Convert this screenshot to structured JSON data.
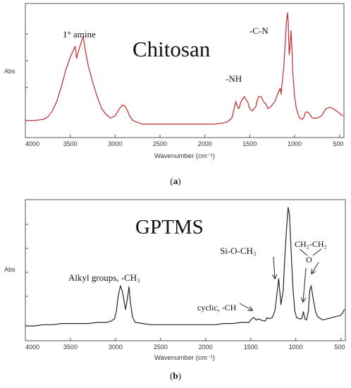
{
  "chart_data": [
    {
      "type": "line",
      "panel_label": "(a)",
      "panel_letter": "a",
      "title": "Chitosan",
      "xlabel": "Wavenumber (cm⁻¹)",
      "ylabel": "Abs",
      "xlim": [
        4000,
        450
      ],
      "x_reversed": true,
      "y_ticks_labeled": false,
      "x_ticks": [
        "4000",
        "3500",
        "3000",
        "2500",
        "2000",
        "1500",
        "1000",
        "500"
      ],
      "line_color": "#c0282c",
      "annotations": [
        "1° amine",
        "-NH",
        "-C-N"
      ],
      "series": [
        {
          "x": [
            4000,
            3900,
            3800,
            3750,
            3700,
            3650,
            3600,
            3550,
            3500,
            3470,
            3445,
            3430,
            3400,
            3370,
            3355,
            3330,
            3300,
            3250,
            3200,
            3150,
            3100,
            3050,
            3000,
            2950,
            2920,
            2890,
            2860,
            2840,
            2800,
            2700,
            2600,
            2500,
            2400,
            2300,
            2200,
            2100,
            2000,
            1900,
            1800,
            1750,
            1700,
            1680,
            1655,
            1640,
            1620,
            1595,
            1560,
            1520,
            1500,
            1470,
            1430,
            1420,
            1400,
            1375,
            1340,
            1320,
            1300,
            1260,
            1220,
            1200,
            1160,
            1150,
            1140,
            1120,
            1100,
            1090,
            1078,
            1070,
            1060,
            1050,
            1040,
            1030,
            1020,
            1000,
            980,
            950,
            920,
            900,
            880,
            850,
            820,
            800,
            750,
            700,
            650,
            600,
            550,
            500,
            460
          ],
          "y": [
            0.1,
            0.1,
            0.11,
            0.13,
            0.18,
            0.26,
            0.38,
            0.52,
            0.63,
            0.68,
            0.72,
            0.62,
            0.7,
            0.77,
            0.8,
            0.68,
            0.56,
            0.42,
            0.3,
            0.2,
            0.15,
            0.12,
            0.14,
            0.2,
            0.23,
            0.22,
            0.18,
            0.14,
            0.1,
            0.07,
            0.07,
            0.07,
            0.07,
            0.07,
            0.07,
            0.07,
            0.07,
            0.07,
            0.08,
            0.09,
            0.12,
            0.18,
            0.26,
            0.22,
            0.2,
            0.26,
            0.3,
            0.25,
            0.2,
            0.18,
            0.22,
            0.26,
            0.3,
            0.3,
            0.25,
            0.24,
            0.2,
            0.22,
            0.26,
            0.3,
            0.37,
            0.32,
            0.4,
            0.55,
            0.8,
            0.93,
            1.0,
            0.9,
            0.65,
            0.72,
            0.85,
            0.7,
            0.5,
            0.3,
            0.2,
            0.13,
            0.11,
            0.12,
            0.17,
            0.17,
            0.14,
            0.12,
            0.12,
            0.14,
            0.2,
            0.21,
            0.19,
            0.16,
            0.14
          ]
        }
      ]
    },
    {
      "type": "line",
      "panel_label": "(b)",
      "panel_letter": "b",
      "title": "GPTMS",
      "xlabel": "Wavenumber (cm⁻¹)",
      "ylabel": "Abs",
      "xlim": [
        4000,
        450
      ],
      "x_reversed": true,
      "y_ticks_labeled": false,
      "x_ticks": [
        "4000",
        "3500",
        "3000",
        "2500",
        "2000",
        "1500",
        "1000",
        "500"
      ],
      "line_color": "#262626",
      "annotations": [
        "Alkyl groups, -CH₃",
        "cyclic, -CH",
        "Si-O-CH₃",
        "CH₂-CH₂",
        "O"
      ],
      "series": [
        {
          "x": [
            4000,
            3900,
            3800,
            3700,
            3600,
            3500,
            3400,
            3300,
            3200,
            3100,
            3050,
            3010,
            2990,
            2970,
            2945,
            2920,
            2890,
            2870,
            2850,
            2835,
            2810,
            2780,
            2700,
            2600,
            2500,
            2400,
            2300,
            2200,
            2100,
            2000,
            1900,
            1800,
            1700,
            1600,
            1520,
            1490,
            1465,
            1440,
            1410,
            1390,
            1340,
            1320,
            1300,
            1260,
            1230,
            1200,
            1190,
            1165,
            1140,
            1120,
            1100,
            1085,
            1070,
            1050,
            1030,
            1010,
            990,
            960,
            935,
            915,
            900,
            880,
            860,
            845,
            830,
            815,
            800,
            780,
            760,
            700,
            650,
            600,
            550,
            500,
            480,
            460
          ],
          "y": [
            0.0,
            0.0,
            0.01,
            0.01,
            0.02,
            0.02,
            0.02,
            0.02,
            0.03,
            0.03,
            0.04,
            0.06,
            0.13,
            0.25,
            0.34,
            0.28,
            0.14,
            0.22,
            0.33,
            0.2,
            0.07,
            0.03,
            0.02,
            0.01,
            0.01,
            0.01,
            0.01,
            0.01,
            0.01,
            0.01,
            0.01,
            0.02,
            0.02,
            0.03,
            0.03,
            0.06,
            0.07,
            0.05,
            0.06,
            0.05,
            0.04,
            0.07,
            0.06,
            0.07,
            0.13,
            0.33,
            0.4,
            0.18,
            0.3,
            0.6,
            0.85,
            1.0,
            0.94,
            0.6,
            0.3,
            0.12,
            0.07,
            0.06,
            0.06,
            0.12,
            0.06,
            0.05,
            0.13,
            0.3,
            0.34,
            0.27,
            0.2,
            0.12,
            0.08,
            0.05,
            0.06,
            0.07,
            0.08,
            0.09,
            0.11,
            0.14
          ]
        }
      ]
    }
  ]
}
